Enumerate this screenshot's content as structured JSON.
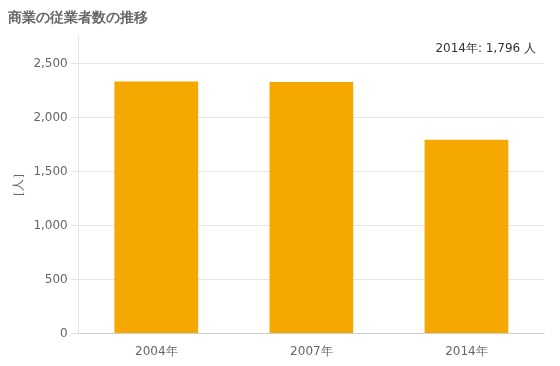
{
  "chart_data": {
    "type": "bar",
    "title": "商業の従業者数の推移",
    "ylabel": "［人］",
    "categories": [
      "2004年",
      "2007年",
      "2014年"
    ],
    "values": [
      2336,
      2332,
      1796
    ],
    "color": "#F5A800",
    "ylim": [
      0,
      2750
    ],
    "yticks": [
      0,
      500,
      {
        "value": 1000,
        "label": "1,000"
      },
      {
        "value": 1500,
        "label": "1,500"
      },
      {
        "value": 2000,
        "label": "2,000"
      },
      {
        "value": 2500,
        "label": "2,500"
      }
    ],
    "annotation": "2014年: 1,796 人",
    "grid": true
  }
}
